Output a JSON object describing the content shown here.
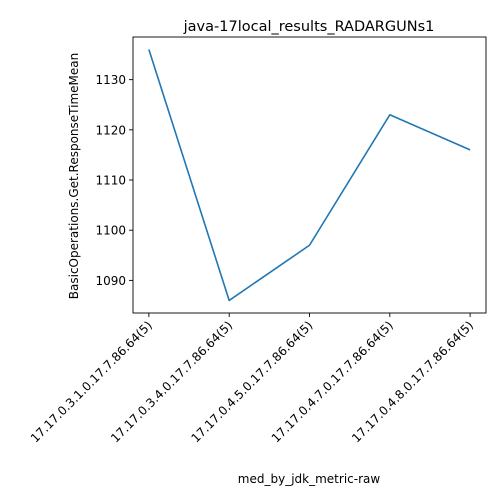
{
  "chart_data": {
    "type": "line",
    "title": "java-17local_results_RADARGUNs1",
    "xlabel": "med_by_jdk_metric-raw",
    "ylabel": "BasicOperations.Get.ResponseTimeMean",
    "categories": [
      "17.17.0.3.1.0.17.7.86.64(5)",
      "17.17.0.3.4.0.17.7.86.64(5)",
      "17.17.0.4.5.0.17.7.86.64(5)",
      "17.17.0.4.7.0.17.7.86.64(5)",
      "17.17.0.4.8.0.17.7.86.64(5)"
    ],
    "series": [
      {
        "values": [
          1136,
          1086,
          1097,
          1123,
          1116
        ]
      }
    ],
    "yticks": [
      1090,
      1100,
      1110,
      1120,
      1130
    ],
    "ylim": [
      1083.5,
      1138.5
    ],
    "grid": false,
    "line_color": "#1f77b4"
  }
}
